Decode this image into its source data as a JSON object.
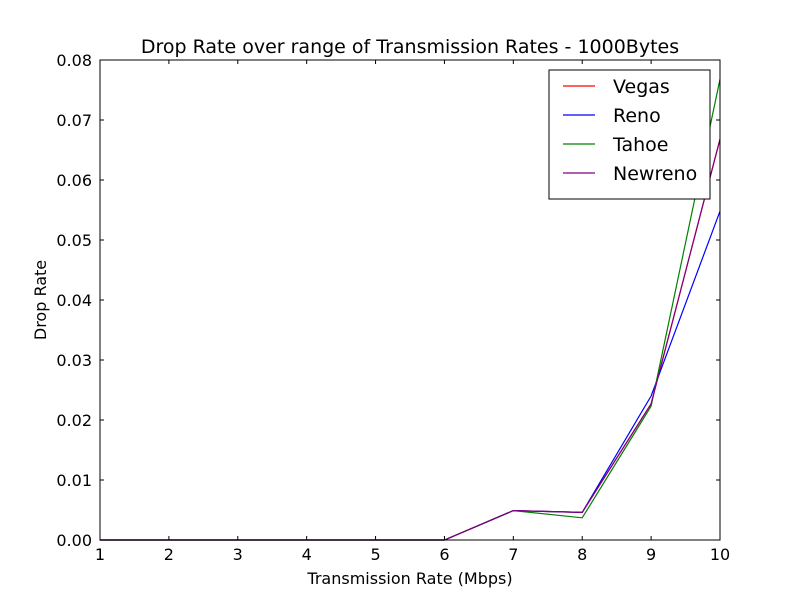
{
  "chart_data": {
    "type": "line",
    "title": "Drop Rate over range of Transmission Rates - 1000Bytes",
    "xlabel": "Transmission Rate (Mbps)",
    "ylabel": "Drop Rate",
    "xlim": [
      1,
      10
    ],
    "ylim": [
      0,
      0.08
    ],
    "x_ticks": [
      1,
      2,
      3,
      4,
      5,
      6,
      7,
      8,
      9,
      10
    ],
    "x_tick_labels": [
      "1",
      "2",
      "3",
      "4",
      "5",
      "6",
      "7",
      "8",
      "9",
      "10"
    ],
    "y_ticks": [
      0,
      0.01,
      0.02,
      0.03,
      0.04,
      0.05,
      0.06,
      0.07,
      0.08
    ],
    "y_tick_labels": [
      "0.00",
      "0.01",
      "0.02",
      "0.03",
      "0.04",
      "0.05",
      "0.06",
      "0.07",
      "0.08"
    ],
    "grid": false,
    "legend_position": "top-right",
    "x": [
      1,
      2,
      3,
      4,
      5,
      6,
      7,
      8,
      9,
      10
    ],
    "series": [
      {
        "name": "Vegas",
        "color": "#ff0000",
        "values": [
          0,
          0,
          0,
          0,
          0,
          0,
          0.0049,
          0.0046,
          0.0227,
          0.0668
        ]
      },
      {
        "name": "Reno",
        "color": "#0000ff",
        "values": [
          0,
          0,
          0,
          0,
          0,
          0,
          0.0049,
          0.0046,
          0.024,
          0.0548
        ]
      },
      {
        "name": "Tahoe",
        "color": "#008000",
        "values": [
          0,
          0,
          0,
          0,
          0,
          0,
          0.0049,
          0.0037,
          0.0223,
          0.0768
        ]
      },
      {
        "name": "Newreno",
        "color": "#800080",
        "values": [
          0,
          0,
          0,
          0,
          0,
          0,
          0.0049,
          0.0046,
          0.0227,
          0.0668
        ]
      }
    ]
  }
}
